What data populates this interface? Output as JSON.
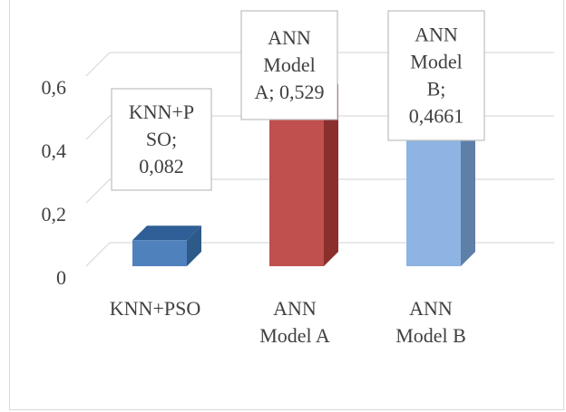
{
  "chart_data": {
    "type": "bar",
    "style": "3d-column",
    "categories": [
      "KNN+PSO",
      "ANN\nModel A",
      "ANN\nModel B"
    ],
    "values": [
      0.082,
      0.529,
      0.4661
    ],
    "yticks": [
      "0",
      "0,2",
      "0,4",
      "0,6"
    ],
    "ylim": [
      0,
      0.6
    ],
    "grid": true,
    "data_labels": [
      [
        "KNN+P",
        "SO;",
        "0,082"
      ],
      [
        "ANN",
        "Model",
        "A; 0,529"
      ],
      [
        "ANN",
        "Model",
        "B;",
        "0,4661"
      ]
    ],
    "colors": {
      "bars": [
        "#4f81bd",
        "#c0504d",
        "#8db4e2"
      ],
      "bar_side": [
        "#2e5a8a",
        "#8b2f2d",
        "#5e7fa8"
      ],
      "bar_top": [
        "#2f5f96",
        "#8e2b29",
        "#6a8db8"
      ],
      "grid": "#d9d9d9",
      "text": "#404040"
    }
  }
}
